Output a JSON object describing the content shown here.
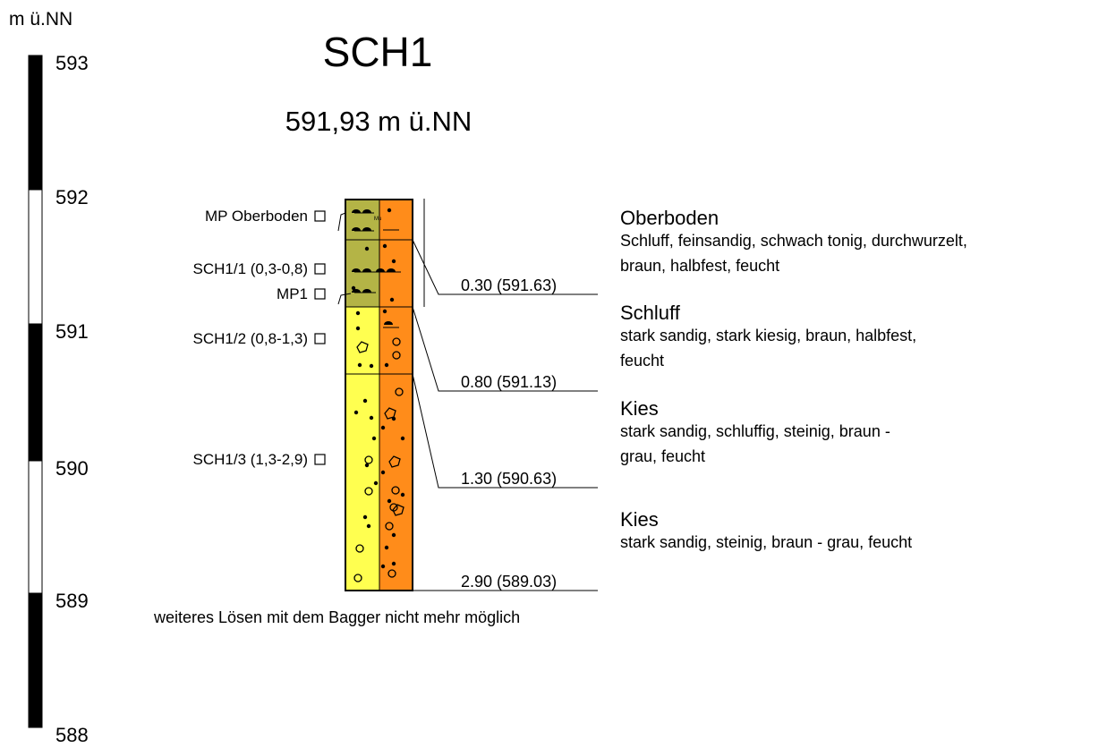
{
  "unit_label": "m ü.NN",
  "title": "SCH1",
  "subtitle": "591,93 m ü.NN",
  "scale_labels": [
    "593",
    "592",
    "591",
    "590",
    "589",
    "588"
  ],
  "column_symbol": "Mu",
  "samples": [
    "MP Oberboden",
    "SCH1/1 (0,3-0,8)",
    "MP1",
    "SCH1/2 (0,8-1,3)",
    "SCH1/3 (1,3-2,9)"
  ],
  "depths": [
    "0.30 (591.63)",
    "0.80 (591.13)",
    "1.30 (590.63)",
    "2.90 (589.03)"
  ],
  "layers": [
    {
      "name": "Oberboden",
      "lines": [
        "Schluff, feinsandig, schwach tonig, durchwurzelt,",
        "braun, halbfest, feucht"
      ]
    },
    {
      "name": "Schluff",
      "lines": [
        "stark sandig, stark kiesig, braun, halbfest,",
        "feucht"
      ]
    },
    {
      "name": "Kies",
      "lines": [
        "stark sandig, schluffig, steinig, braun -",
        "grau, feucht"
      ]
    },
    {
      "name": "Kies",
      "lines": [
        "stark sandig, steinig, braun - grau, feucht"
      ]
    }
  ],
  "footer": "weiteres Lösen mit dem Bagger nicht mehr möglich"
}
